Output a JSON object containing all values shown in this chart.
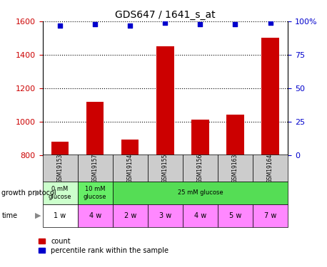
{
  "title": "GDS647 / 1641_s_at",
  "samples": [
    "GSM19153",
    "GSM19157",
    "GSM19154",
    "GSM19155",
    "GSM19156",
    "GSM19163",
    "GSM19164"
  ],
  "counts": [
    880,
    1120,
    890,
    1450,
    1010,
    1040,
    1500
  ],
  "percentile_ranks": [
    97,
    98,
    97,
    99,
    98,
    98,
    99
  ],
  "ylim_left": [
    800,
    1600
  ],
  "yticks_left": [
    800,
    1000,
    1200,
    1400,
    1600
  ],
  "yticks_right": [
    0,
    25,
    50,
    75,
    100
  ],
  "bar_color": "#cc0000",
  "dot_color": "#0000cc",
  "bar_width": 0.5,
  "time_labels": [
    "1 w",
    "4 w",
    "2 w",
    "3 w",
    "4 w",
    "5 w",
    "7 w"
  ],
  "time_colors": [
    "#ffffff",
    "#ff88ff",
    "#ff88ff",
    "#ff88ff",
    "#ff88ff",
    "#ff88ff",
    "#ff88ff"
  ],
  "sample_bg_color": "#cccccc",
  "left_axis_color": "#cc0000",
  "right_axis_color": "#0000cc",
  "growth_groups": [
    {
      "start": 0,
      "end": 1,
      "label": "0 mM\nglucose",
      "color": "#ccffcc"
    },
    {
      "start": 1,
      "end": 2,
      "label": "10 mM\nglucose",
      "color": "#66ee66"
    },
    {
      "start": 2,
      "end": 7,
      "label": "25 mM glucose",
      "color": "#55dd55"
    }
  ]
}
